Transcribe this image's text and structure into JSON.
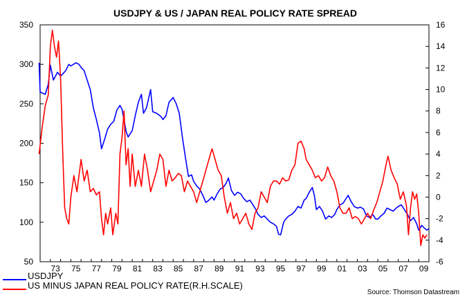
{
  "chart_data": {
    "type": "line",
    "title": "USDJPY & US / JAPAN REAL POLICY RATE SPREAD",
    "source": "Source: Thomson Datastream",
    "x_tick_labels": [
      "73",
      "75",
      "77",
      "79",
      "81",
      "83",
      "85",
      "87",
      "89",
      "91",
      "93",
      "95",
      "97",
      "99",
      "01",
      "03",
      "05",
      "07",
      "09"
    ],
    "x_range": [
      1972.0,
      2010.0
    ],
    "y_left": {
      "range": [
        50,
        350
      ],
      "ticks": [
        50,
        100,
        150,
        200,
        250,
        300,
        350
      ]
    },
    "y_right": {
      "range": [
        -6,
        16
      ],
      "ticks": [
        -6,
        -4,
        -2,
        0,
        2,
        4,
        6,
        8,
        10,
        12,
        14,
        16
      ]
    },
    "grid": false,
    "legend_position": "bottom-left",
    "series": [
      {
        "name": "USDJPY",
        "axis": "left",
        "color": "#0000ff",
        "points": [
          [
            1971.9,
            302
          ],
          [
            1972.0,
            265
          ],
          [
            1972.5,
            262
          ],
          [
            1972.8,
            275
          ],
          [
            1973.0,
            299
          ],
          [
            1973.3,
            280
          ],
          [
            1973.7,
            290
          ],
          [
            1974.0,
            285
          ],
          [
            1974.5,
            292
          ],
          [
            1974.8,
            300
          ],
          [
            1975.0,
            298
          ],
          [
            1975.5,
            302
          ],
          [
            1975.8,
            300
          ],
          [
            1976.0,
            296
          ],
          [
            1976.3,
            292
          ],
          [
            1976.6,
            280
          ],
          [
            1976.9,
            268
          ],
          [
            1977.2,
            245
          ],
          [
            1977.5,
            230
          ],
          [
            1977.8,
            213
          ],
          [
            1978.0,
            193
          ],
          [
            1978.3,
            205
          ],
          [
            1978.6,
            218
          ],
          [
            1978.9,
            224
          ],
          [
            1979.2,
            228
          ],
          [
            1979.5,
            242
          ],
          [
            1979.8,
            248
          ],
          [
            1980.0,
            243
          ],
          [
            1980.2,
            230
          ],
          [
            1980.4,
            215
          ],
          [
            1980.6,
            208
          ],
          [
            1980.8,
            212
          ],
          [
            1981.0,
            216
          ],
          [
            1981.3,
            235
          ],
          [
            1981.6,
            252
          ],
          [
            1981.9,
            262
          ],
          [
            1982.1,
            238
          ],
          [
            1982.4,
            245
          ],
          [
            1982.8,
            268
          ],
          [
            1983.0,
            240
          ],
          [
            1983.4,
            238
          ],
          [
            1983.8,
            234
          ],
          [
            1984.0,
            230
          ],
          [
            1984.3,
            235
          ],
          [
            1984.6,
            252
          ],
          [
            1985.0,
            258
          ],
          [
            1985.3,
            250
          ],
          [
            1985.6,
            238
          ],
          [
            1985.9,
            208
          ],
          [
            1986.2,
            182
          ],
          [
            1986.5,
            158
          ],
          [
            1986.8,
            160
          ],
          [
            1987.0,
            152
          ],
          [
            1987.3,
            146
          ],
          [
            1987.6,
            142
          ],
          [
            1987.9,
            134
          ],
          [
            1988.2,
            125
          ],
          [
            1988.5,
            128
          ],
          [
            1988.8,
            132
          ],
          [
            1989.0,
            128
          ],
          [
            1989.3,
            136
          ],
          [
            1989.6,
            142
          ],
          [
            1989.9,
            144
          ],
          [
            1990.2,
            150
          ],
          [
            1990.4,
            156
          ],
          [
            1990.7,
            140
          ],
          [
            1991.0,
            134
          ],
          [
            1991.3,
            138
          ],
          [
            1991.6,
            136
          ],
          [
            1991.9,
            130
          ],
          [
            1992.2,
            126
          ],
          [
            1992.5,
            128
          ],
          [
            1992.8,
            122
          ],
          [
            1993.0,
            118
          ],
          [
            1993.3,
            110
          ],
          [
            1993.6,
            106
          ],
          [
            1993.9,
            108
          ],
          [
            1994.2,
            104
          ],
          [
            1994.5,
            100
          ],
          [
            1994.8,
            98
          ],
          [
            1995.1,
            95
          ],
          [
            1995.3,
            85
          ],
          [
            1995.5,
            84
          ],
          [
            1995.8,
            100
          ],
          [
            1996.0,
            104
          ],
          [
            1996.3,
            108
          ],
          [
            1996.6,
            110
          ],
          [
            1996.9,
            114
          ],
          [
            1997.2,
            120
          ],
          [
            1997.5,
            118
          ],
          [
            1997.8,
            128
          ],
          [
            1998.0,
            130
          ],
          [
            1998.3,
            138
          ],
          [
            1998.6,
            144
          ],
          [
            1998.8,
            134
          ],
          [
            1999.0,
            116
          ],
          [
            1999.3,
            120
          ],
          [
            1999.6,
            114
          ],
          [
            1999.9,
            104
          ],
          [
            2000.2,
            108
          ],
          [
            2000.5,
            106
          ],
          [
            2000.8,
            110
          ],
          [
            2001.0,
            116
          ],
          [
            2001.3,
            122
          ],
          [
            2001.6,
            124
          ],
          [
            2001.9,
            130
          ],
          [
            2002.1,
            134
          ],
          [
            2002.4,
            126
          ],
          [
            2002.7,
            120
          ],
          [
            2003.0,
            118
          ],
          [
            2003.3,
            119
          ],
          [
            2003.6,
            117
          ],
          [
            2003.9,
            108
          ],
          [
            2004.2,
            106
          ],
          [
            2004.5,
            110
          ],
          [
            2004.8,
            104
          ],
          [
            2005.0,
            104
          ],
          [
            2005.3,
            108
          ],
          [
            2005.6,
            111
          ],
          [
            2005.9,
            118
          ],
          [
            2006.2,
            116
          ],
          [
            2006.5,
            114
          ],
          [
            2006.8,
            118
          ],
          [
            2007.0,
            120
          ],
          [
            2007.3,
            122
          ],
          [
            2007.6,
            116
          ],
          [
            2007.9,
            110
          ],
          [
            2008.2,
            102
          ],
          [
            2008.5,
            106
          ],
          [
            2008.8,
            98
          ],
          [
            2009.0,
            90
          ],
          [
            2009.3,
            96
          ],
          [
            2009.6,
            92
          ],
          [
            2009.8,
            90
          ],
          [
            2010.0,
            92
          ]
        ]
      },
      {
        "name": "US MINUS JAPAN REAL POLICY RATE(R.H.SCALE)",
        "axis": "right",
        "color": "#ff0000",
        "points": [
          [
            1971.9,
            4.0
          ],
          [
            1972.2,
            6.5
          ],
          [
            1972.5,
            8.5
          ],
          [
            1972.8,
            9.5
          ],
          [
            1973.0,
            14.0
          ],
          [
            1973.2,
            15.5
          ],
          [
            1973.4,
            14.0
          ],
          [
            1973.6,
            13.0
          ],
          [
            1973.8,
            14.5
          ],
          [
            1974.0,
            11.0
          ],
          [
            1974.2,
            4.5
          ],
          [
            1974.4,
            -1.0
          ],
          [
            1974.6,
            -2.0
          ],
          [
            1974.8,
            -2.5
          ],
          [
            1975.0,
            0.0
          ],
          [
            1975.3,
            2.0
          ],
          [
            1975.6,
            0.5
          ],
          [
            1975.8,
            2.0
          ],
          [
            1976.0,
            3.5
          ],
          [
            1976.3,
            1.5
          ],
          [
            1976.6,
            2.5
          ],
          [
            1976.9,
            0.5
          ],
          [
            1977.2,
            0.8
          ],
          [
            1977.5,
            0.2
          ],
          [
            1977.8,
            0.5
          ],
          [
            1978.0,
            -2.0
          ],
          [
            1978.2,
            -3.5
          ],
          [
            1978.4,
            -1.5
          ],
          [
            1978.6,
            -2.5
          ],
          [
            1978.9,
            -1.0
          ],
          [
            1979.1,
            -3.5
          ],
          [
            1979.4,
            -1.5
          ],
          [
            1979.6,
            -2.5
          ],
          [
            1979.8,
            4.0
          ],
          [
            1980.0,
            5.5
          ],
          [
            1980.2,
            8.0
          ],
          [
            1980.4,
            3.0
          ],
          [
            1980.6,
            4.5
          ],
          [
            1980.8,
            1.0
          ],
          [
            1981.0,
            4.0
          ],
          [
            1981.3,
            1.0
          ],
          [
            1981.6,
            2.5
          ],
          [
            1981.9,
            1.0
          ],
          [
            1982.2,
            4.0
          ],
          [
            1982.5,
            2.5
          ],
          [
            1982.8,
            0.5
          ],
          [
            1983.1,
            1.5
          ],
          [
            1983.4,
            2.5
          ],
          [
            1983.7,
            4.0
          ],
          [
            1984.0,
            3.5
          ],
          [
            1984.3,
            1.0
          ],
          [
            1984.6,
            2.5
          ],
          [
            1984.9,
            1.5
          ],
          [
            1985.2,
            1.8
          ],
          [
            1985.5,
            2.2
          ],
          [
            1985.8,
            2.0
          ],
          [
            1986.1,
            0.5
          ],
          [
            1986.4,
            1.5
          ],
          [
            1986.7,
            1.0
          ],
          [
            1987.0,
            0.5
          ],
          [
            1987.3,
            -0.5
          ],
          [
            1987.6,
            0.5
          ],
          [
            1987.9,
            1.5
          ],
          [
            1988.2,
            2.5
          ],
          [
            1988.5,
            3.5
          ],
          [
            1988.8,
            4.5
          ],
          [
            1989.1,
            3.5
          ],
          [
            1989.4,
            2.5
          ],
          [
            1989.7,
            2.0
          ],
          [
            1990.0,
            0.0
          ],
          [
            1990.3,
            -1.5
          ],
          [
            1990.6,
            -0.5
          ],
          [
            1990.9,
            -2.0
          ],
          [
            1991.2,
            -1.5
          ],
          [
            1991.5,
            -2.5
          ],
          [
            1991.8,
            -2.0
          ],
          [
            1992.1,
            -1.5
          ],
          [
            1992.4,
            -2.5
          ],
          [
            1992.7,
            -3.0
          ],
          [
            1993.0,
            -1.5
          ],
          [
            1993.3,
            -1.0
          ],
          [
            1993.6,
            0.5
          ],
          [
            1993.9,
            0.0
          ],
          [
            1994.2,
            -0.5
          ],
          [
            1994.5,
            1.0
          ],
          [
            1994.8,
            1.5
          ],
          [
            1995.1,
            1.5
          ],
          [
            1995.4,
            1.2
          ],
          [
            1995.7,
            1.8
          ],
          [
            1996.0,
            1.5
          ],
          [
            1996.3,
            1.6
          ],
          [
            1996.6,
            2.5
          ],
          [
            1996.9,
            3.0
          ],
          [
            1997.2,
            5.0
          ],
          [
            1997.5,
            5.2
          ],
          [
            1997.8,
            4.5
          ],
          [
            1998.0,
            3.5
          ],
          [
            1998.3,
            3.0
          ],
          [
            1998.6,
            2.5
          ],
          [
            1998.9,
            1.8
          ],
          [
            1999.2,
            2.0
          ],
          [
            1999.5,
            1.5
          ],
          [
            1999.8,
            1.8
          ],
          [
            2000.1,
            2.8
          ],
          [
            2000.4,
            2.0
          ],
          [
            2000.7,
            1.5
          ],
          [
            2001.0,
            0.5
          ],
          [
            2001.3,
            -1.0
          ],
          [
            2001.6,
            -1.5
          ],
          [
            2001.9,
            -1.5
          ],
          [
            2002.2,
            -1.0
          ],
          [
            2002.5,
            -2.0
          ],
          [
            2002.8,
            -1.8
          ],
          [
            2003.1,
            -2.0
          ],
          [
            2003.4,
            -2.5
          ],
          [
            2003.7,
            -2.0
          ],
          [
            2004.0,
            -1.5
          ],
          [
            2004.3,
            -2.0
          ],
          [
            2004.6,
            -1.2
          ],
          [
            2004.9,
            -0.5
          ],
          [
            2005.2,
            0.5
          ],
          [
            2005.5,
            1.5
          ],
          [
            2005.8,
            3.0
          ],
          [
            2006.0,
            3.8
          ],
          [
            2006.3,
            2.5
          ],
          [
            2006.6,
            1.8
          ],
          [
            2006.9,
            1.2
          ],
          [
            2007.2,
            -0.2
          ],
          [
            2007.5,
            0.5
          ],
          [
            2007.8,
            -0.8
          ],
          [
            2008.0,
            -3.5
          ],
          [
            2008.2,
            -1.0
          ],
          [
            2008.4,
            0.5
          ],
          [
            2008.6,
            -0.2
          ],
          [
            2008.8,
            0.3
          ],
          [
            2009.0,
            -1.5
          ],
          [
            2009.2,
            -4.5
          ],
          [
            2009.4,
            -3.5
          ],
          [
            2009.6,
            -3.8
          ],
          [
            2009.8,
            -3.5
          ]
        ]
      }
    ]
  }
}
